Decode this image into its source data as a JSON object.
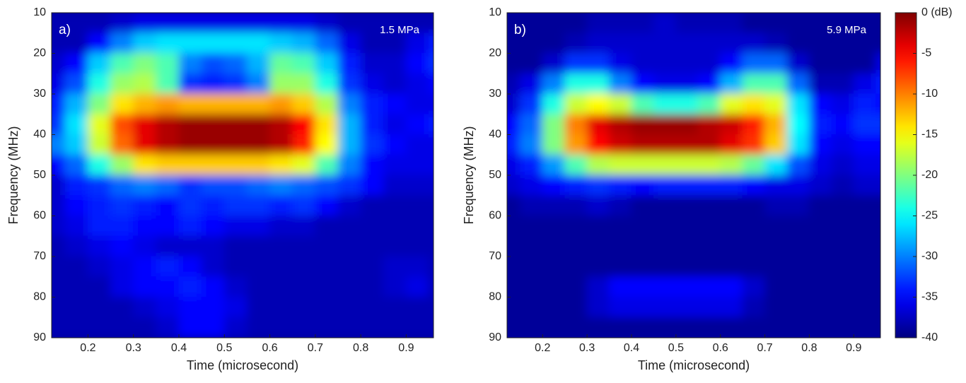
{
  "chart_data": [
    {
      "type": "heatmap",
      "panel_label": "a)",
      "annotation": "1.5 MPa",
      "xlabel": "Time (microsecond)",
      "ylabel": "Frequency (MHz)",
      "xlim": [
        0.12,
        0.96
      ],
      "ylim": [
        10,
        90
      ],
      "y_reversed": true,
      "xticks": [
        0.2,
        0.3,
        0.4,
        0.5,
        0.6,
        0.7,
        0.8,
        0.9
      ],
      "yticks": [
        10,
        20,
        30,
        40,
        50,
        60,
        70,
        80,
        90
      ],
      "colormap": "jet",
      "clim": [
        -40,
        0
      ],
      "x": [
        0.125,
        0.175,
        0.225,
        0.275,
        0.325,
        0.375,
        0.425,
        0.475,
        0.525,
        0.575,
        0.625,
        0.675,
        0.725,
        0.775,
        0.825,
        0.875,
        0.925,
        0.975
      ],
      "y": [
        12.5,
        17.5,
        22.5,
        27.5,
        32.5,
        37.5,
        42.5,
        47.5,
        52.5,
        57.5,
        62.5,
        67.5,
        72.5,
        77.5,
        82.5,
        87.5
      ],
      "z": [
        [
          -38,
          -38,
          -38,
          -37,
          -36,
          -36,
          -36,
          -36,
          -36,
          -36,
          -36,
          -36,
          -37,
          -38,
          -38,
          -38,
          -38,
          -38
        ],
        [
          -38,
          -38,
          -35,
          -30,
          -27,
          -26,
          -26,
          -26,
          -26,
          -26,
          -27,
          -28,
          -31,
          -36,
          -38,
          -38,
          -36,
          -34
        ],
        [
          -37,
          -35,
          -27,
          -22,
          -20,
          -22,
          -30,
          -32,
          -31,
          -28,
          -21,
          -22,
          -27,
          -34,
          -37,
          -37,
          -35,
          -33
        ],
        [
          -36,
          -32,
          -24,
          -19,
          -18,
          -22,
          -33,
          -34,
          -33,
          -30,
          -19,
          -19,
          -24,
          -33,
          -36,
          -37,
          -36,
          -35
        ],
        [
          -34,
          -28,
          -20,
          -14,
          -12,
          -11,
          -12,
          -12,
          -12,
          -12,
          -11,
          -13,
          -18,
          -30,
          -34,
          -35,
          -36,
          -36
        ],
        [
          -33,
          -26,
          -16,
          -8,
          -4,
          -2,
          -1,
          -1,
          -1,
          -1,
          -2,
          -5,
          -14,
          -28,
          -34,
          -36,
          -35,
          -34
        ],
        [
          -30,
          -27,
          -17,
          -9,
          -4,
          -2,
          -1,
          -1,
          -1,
          -1,
          -2,
          -6,
          -15,
          -28,
          -33,
          -35,
          -36,
          -36
        ],
        [
          -35,
          -31,
          -24,
          -19,
          -14,
          -13,
          -13,
          -13,
          -13,
          -13,
          -14,
          -16,
          -22,
          -30,
          -35,
          -36,
          -36,
          -36
        ],
        [
          -37,
          -34,
          -33,
          -31,
          -30,
          -31,
          -33,
          -32,
          -32,
          -31,
          -30,
          -31,
          -32,
          -33,
          -35,
          -37,
          -37,
          -37
        ],
        [
          -37,
          -35,
          -34,
          -33,
          -34,
          -35,
          -33,
          -34,
          -33,
          -33,
          -34,
          -33,
          -35,
          -37,
          -38,
          -38,
          -38,
          -38
        ],
        [
          -37,
          -36,
          -34,
          -34,
          -35,
          -35,
          -34,
          -35,
          -36,
          -36,
          -37,
          -37,
          -38,
          -38,
          -38,
          -38,
          -38,
          -38
        ],
        [
          -38,
          -37,
          -36,
          -35,
          -36,
          -37,
          -37,
          -37,
          -38,
          -38,
          -38,
          -38,
          -38,
          -38,
          -38,
          -38,
          -38,
          -38
        ],
        [
          -38,
          -38,
          -37,
          -36,
          -35,
          -34,
          -35,
          -37,
          -38,
          -38,
          -38,
          -38,
          -38,
          -38,
          -38,
          -37,
          -37,
          -38
        ],
        [
          -38,
          -38,
          -38,
          -36,
          -35,
          -35,
          -34,
          -35,
          -37,
          -38,
          -38,
          -38,
          -38,
          -38,
          -38,
          -37,
          -36,
          -38
        ],
        [
          -38,
          -38,
          -38,
          -38,
          -37,
          -36,
          -35,
          -35,
          -36,
          -38,
          -38,
          -38,
          -38,
          -38,
          -38,
          -38,
          -38,
          -38
        ],
        [
          -38,
          -38,
          -38,
          -38,
          -38,
          -37,
          -35,
          -35,
          -37,
          -38,
          -38,
          -38,
          -38,
          -38,
          -38,
          -38,
          -38,
          -38
        ]
      ]
    },
    {
      "type": "heatmap",
      "panel_label": "b)",
      "annotation": "5.9 MPa",
      "xlabel": "Time (microsecond)",
      "ylabel": "Frequency (MHz)",
      "xlim": [
        0.12,
        0.96
      ],
      "ylim": [
        10,
        90
      ],
      "y_reversed": true,
      "xticks": [
        0.2,
        0.3,
        0.4,
        0.5,
        0.6,
        0.7,
        0.8,
        0.9
      ],
      "yticks": [
        10,
        20,
        30,
        40,
        50,
        60,
        70,
        80,
        90
      ],
      "colormap": "jet",
      "clim": [
        -40,
        0
      ],
      "cticks": [
        {
          "value": 0,
          "label": "0 (dB)"
        },
        -5,
        -10,
        -15,
        -20,
        -25,
        -30,
        -35,
        -40
      ],
      "x": [
        0.125,
        0.175,
        0.225,
        0.275,
        0.325,
        0.375,
        0.425,
        0.475,
        0.525,
        0.575,
        0.625,
        0.675,
        0.725,
        0.775,
        0.825,
        0.875,
        0.925,
        0.975
      ],
      "y": [
        12.5,
        17.5,
        22.5,
        27.5,
        32.5,
        37.5,
        42.5,
        47.5,
        52.5,
        57.5,
        62.5,
        67.5,
        72.5,
        77.5,
        82.5,
        87.5
      ],
      "z": [
        [
          -39,
          -39,
          -39,
          -39,
          -38,
          -38,
          -38,
          -37,
          -38,
          -38,
          -38,
          -39,
          -39,
          -39,
          -39,
          -39,
          -39,
          -39
        ],
        [
          -39,
          -39,
          -39,
          -38,
          -37,
          -37,
          -37,
          -37,
          -37,
          -37,
          -37,
          -37,
          -38,
          -39,
          -39,
          -39,
          -39,
          -39
        ],
        [
          -39,
          -39,
          -37,
          -33,
          -33,
          -36,
          -37,
          -37,
          -37,
          -37,
          -35,
          -31,
          -31,
          -37,
          -39,
          -39,
          -39,
          -36
        ],
        [
          -38,
          -36,
          -30,
          -24,
          -24,
          -30,
          -35,
          -36,
          -36,
          -35,
          -28,
          -22,
          -22,
          -31,
          -38,
          -38,
          -36,
          -34
        ],
        [
          -37,
          -33,
          -24,
          -17,
          -15,
          -17,
          -22,
          -24,
          -24,
          -22,
          -16,
          -14,
          -16,
          -26,
          -35,
          -36,
          -34,
          -35
        ],
        [
          -35,
          -31,
          -20,
          -10,
          -4,
          -2,
          -1,
          -1,
          -1,
          -2,
          -3,
          -6,
          -12,
          -25,
          -34,
          -35,
          -33,
          -33
        ],
        [
          -34,
          -30,
          -20,
          -11,
          -5,
          -3,
          -2,
          -2,
          -2,
          -2,
          -4,
          -7,
          -13,
          -26,
          -35,
          -36,
          -35,
          -35
        ],
        [
          -36,
          -34,
          -29,
          -22,
          -18,
          -17,
          -17,
          -17,
          -17,
          -17,
          -18,
          -21,
          -26,
          -32,
          -36,
          -37,
          -36,
          -36
        ],
        [
          -37,
          -36,
          -35,
          -34,
          -33,
          -34,
          -35,
          -34,
          -34,
          -34,
          -34,
          -35,
          -36,
          -36,
          -37,
          -38,
          -37,
          -37
        ],
        [
          -39,
          -38,
          -38,
          -38,
          -37,
          -38,
          -39,
          -39,
          -39,
          -39,
          -39,
          -39,
          -38,
          -38,
          -39,
          -39,
          -39,
          -39
        ],
        [
          -39,
          -39,
          -39,
          -39,
          -39,
          -39,
          -39,
          -39,
          -39,
          -39,
          -39,
          -39,
          -39,
          -39,
          -39,
          -39,
          -39,
          -39
        ],
        [
          -39,
          -39,
          -39,
          -39,
          -39,
          -39,
          -39,
          -39,
          -39,
          -39,
          -39,
          -39,
          -39,
          -39,
          -39,
          -39,
          -39,
          -39
        ],
        [
          -39,
          -39,
          -39,
          -39,
          -39,
          -39,
          -39,
          -39,
          -39,
          -39,
          -39,
          -39,
          -39,
          -39,
          -39,
          -39,
          -39,
          -39
        ],
        [
          -39,
          -39,
          -39,
          -39,
          -37,
          -35,
          -35,
          -35,
          -35,
          -35,
          -35,
          -37,
          -39,
          -39,
          -39,
          -39,
          -39,
          -39
        ],
        [
          -39,
          -39,
          -39,
          -39,
          -37,
          -36,
          -36,
          -36,
          -36,
          -36,
          -36,
          -38,
          -39,
          -39,
          -39,
          -39,
          -39,
          -39
        ],
        [
          -39,
          -39,
          -39,
          -39,
          -39,
          -39,
          -39,
          -39,
          -39,
          -39,
          -39,
          -39,
          -39,
          -39,
          -39,
          -39,
          -39,
          -39
        ]
      ]
    }
  ]
}
